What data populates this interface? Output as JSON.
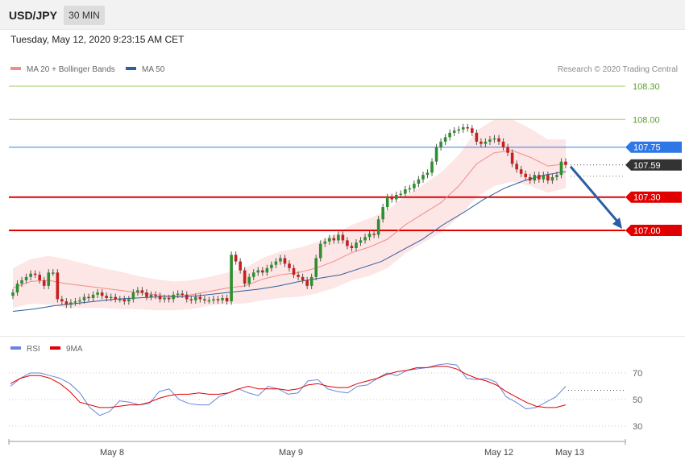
{
  "header": {
    "symbol": "USD/JPY",
    "timeframe": "30 MIN"
  },
  "datetime": "Tuesday, May 12, 2020 9:23:15 AM CET",
  "legend": {
    "ma20": {
      "label": "MA 20 + Bollinger Bands",
      "color": "#f28b8b"
    },
    "ma50": {
      "label": "MA 50",
      "color": "#2f5f9e"
    }
  },
  "credit": "Research © 2020 Trading Central",
  "rsi_legend": {
    "rsi": {
      "label": "RSI",
      "color": "#6a86d8"
    },
    "ma9": {
      "label": "9MA",
      "color": "#e00000"
    }
  },
  "chart_data": [
    {
      "type": "candlestick",
      "title": "",
      "y_range": [
        106.2,
        108.4
      ],
      "current_price": 107.59,
      "levels": [
        {
          "value": 108.3,
          "label": "108.30",
          "kind": "resistance"
        },
        {
          "value": 108.0,
          "label": "108.00",
          "kind": "resistance"
        },
        {
          "value": 107.75,
          "label": "107.75",
          "kind": "pivot"
        },
        {
          "value": 107.59,
          "label": "107.59",
          "kind": "last"
        },
        {
          "value": 107.3,
          "label": "107.30",
          "kind": "support"
        },
        {
          "value": 107.0,
          "label": "107.00",
          "kind": "support"
        }
      ],
      "closes": [
        106.44,
        106.52,
        106.55,
        106.58,
        106.61,
        106.6,
        106.55,
        106.5,
        106.62,
        106.62,
        106.38,
        106.36,
        106.33,
        106.35,
        106.36,
        106.37,
        106.4,
        106.39,
        106.42,
        106.44,
        106.41,
        106.39,
        106.4,
        106.38,
        106.38,
        106.36,
        106.38,
        106.44,
        106.46,
        106.44,
        106.4,
        106.42,
        106.41,
        106.38,
        106.39,
        106.38,
        106.42,
        106.43,
        106.42,
        106.38,
        106.37,
        106.4,
        106.38,
        106.37,
        106.37,
        106.38,
        106.37,
        106.39,
        106.36,
        106.78,
        106.72,
        106.64,
        106.52,
        106.58,
        106.62,
        106.64,
        106.62,
        106.66,
        106.69,
        106.72,
        106.75,
        106.7,
        106.66,
        106.6,
        106.58,
        106.55,
        106.5,
        106.58,
        106.75,
        106.88,
        106.9,
        106.93,
        106.91,
        106.96,
        106.91,
        106.86,
        106.84,
        106.89,
        106.91,
        106.94,
        106.97,
        106.96,
        107.1,
        107.21,
        107.3,
        107.28,
        107.32,
        107.33,
        107.37,
        107.38,
        107.42,
        107.46,
        107.5,
        107.52,
        107.62,
        107.75,
        107.8,
        107.84,
        107.88,
        107.9,
        107.91,
        107.93,
        107.92,
        107.88,
        107.8,
        107.78,
        107.8,
        107.82,
        107.83,
        107.8,
        107.75,
        107.7,
        107.6,
        107.55,
        107.51,
        107.48,
        107.45,
        107.5,
        107.46,
        107.5,
        107.45,
        107.48,
        107.5,
        107.62,
        107.59
      ],
      "ma20": [
        106.48,
        106.54,
        106.55,
        106.52,
        106.5,
        106.48,
        106.46,
        106.44,
        106.42,
        106.41,
        106.42,
        106.45,
        106.48,
        106.5,
        106.56,
        106.6,
        106.62,
        106.66,
        106.72,
        106.8,
        106.85,
        106.92,
        107.05,
        107.15,
        107.25,
        107.4,
        107.6,
        107.7,
        107.72,
        107.66,
        107.58,
        107.6
      ],
      "ma50": [
        106.27,
        106.29,
        106.32,
        106.34,
        106.36,
        106.38,
        106.39,
        106.4,
        106.4,
        106.41,
        106.43,
        106.45,
        106.47,
        106.5,
        106.54,
        106.57,
        106.6,
        106.66,
        106.72,
        106.82,
        106.92,
        107.05,
        107.16,
        107.28,
        107.38,
        107.45,
        107.5,
        107.53
      ],
      "x_labels": [
        "May 8",
        "May 9",
        "May 12",
        "May 13"
      ],
      "forecast_target": 107.0
    },
    {
      "type": "line",
      "title": "",
      "y_range": [
        20,
        80
      ],
      "levels": [
        70,
        50,
        30
      ],
      "series": [
        {
          "name": "RSI",
          "values": [
            60,
            66,
            70,
            70,
            68,
            66,
            62,
            55,
            44,
            38,
            41,
            49,
            48,
            46,
            47,
            56,
            58,
            50,
            47,
            46,
            46,
            52,
            55,
            58,
            55,
            53,
            60,
            58,
            54,
            55,
            64,
            65,
            58,
            56,
            55,
            60,
            61,
            66,
            70,
            68,
            72,
            73,
            74,
            76,
            77,
            76,
            66,
            65,
            66,
            63,
            52,
            48,
            43,
            44,
            48,
            52,
            60
          ]
        },
        {
          "name": "9MA",
          "values": [
            62,
            66,
            68,
            68,
            66,
            62,
            56,
            48,
            46,
            44,
            44,
            45,
            46,
            46,
            48,
            51,
            53,
            54,
            54,
            55,
            54,
            54,
            55,
            58,
            60,
            58,
            58,
            58,
            57,
            58,
            61,
            62,
            60,
            59,
            59,
            62,
            64,
            66,
            69,
            71,
            72,
            74,
            74,
            75,
            75,
            73,
            69,
            66,
            64,
            61,
            56,
            52,
            48,
            45,
            44,
            44,
            46
          ]
        }
      ]
    }
  ]
}
